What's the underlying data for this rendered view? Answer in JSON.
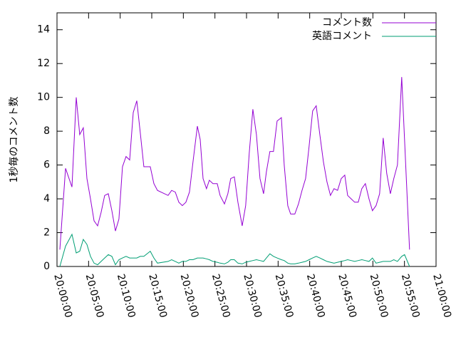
{
  "chart_data": {
    "type": "line",
    "ylabel": "1秒毎のコメント数",
    "x": [
      "20:00:27",
      "20:01:21",
      "20:02:22",
      "20:03:03",
      "20:03:36",
      "20:04:10",
      "20:04:44",
      "20:05:18",
      "20:05:52",
      "20:06:26",
      "20:06:59",
      "20:07:33",
      "20:08:07",
      "20:08:41",
      "20:09:15",
      "20:09:48",
      "20:10:22",
      "20:10:56",
      "20:11:30",
      "20:12:04",
      "20:12:38",
      "20:13:11",
      "20:13:45",
      "20:14:46",
      "20:15:20",
      "20:15:54",
      "20:17:35",
      "20:18:09",
      "20:18:43",
      "20:19:17",
      "20:19:50",
      "20:20:24",
      "20:20:58",
      "20:21:32",
      "20:22:13",
      "20:22:40",
      "20:23:07",
      "20:23:40",
      "20:24:07",
      "20:24:41",
      "20:25:22",
      "20:25:49",
      "20:26:30",
      "20:27:03",
      "20:27:30",
      "20:28:04",
      "20:28:38",
      "20:29:19",
      "20:29:52",
      "20:30:26",
      "20:31:00",
      "20:31:34",
      "20:32:08",
      "20:32:42",
      "20:33:09",
      "20:33:42",
      "20:34:16",
      "20:34:50",
      "20:35:31",
      "20:35:58",
      "20:36:32",
      "20:36:59",
      "20:37:39",
      "20:38:13",
      "20:38:47",
      "20:39:21",
      "20:39:54",
      "20:40:28",
      "20:41:02",
      "20:41:36",
      "20:42:10",
      "20:42:44",
      "20:43:17",
      "20:43:51",
      "20:44:25",
      "20:44:59",
      "20:45:33",
      "20:46:00",
      "20:46:34",
      "20:47:07",
      "20:47:41",
      "20:48:15",
      "20:48:49",
      "20:49:23",
      "20:49:56",
      "20:50:30",
      "20:51:04",
      "20:51:38",
      "20:52:12",
      "20:52:46",
      "20:53:19",
      "20:53:53",
      "20:54:34",
      "20:55:01",
      "20:55:48"
    ],
    "series": [
      {
        "name": "コメント数",
        "color": "#9400d3",
        "values": [
          1.0,
          5.8,
          4.7,
          10.0,
          7.8,
          8.2,
          5.2,
          4.0,
          2.7,
          2.4,
          3.2,
          4.2,
          4.3,
          3.3,
          2.1,
          2.8,
          5.9,
          6.5,
          6.3,
          9.1,
          9.8,
          7.9,
          5.9,
          5.9,
          4.9,
          4.5,
          4.2,
          4.5,
          4.4,
          3.8,
          3.6,
          3.8,
          4.4,
          6.2,
          8.3,
          7.5,
          5.2,
          4.6,
          5.1,
          4.9,
          4.9,
          4.2,
          3.7,
          4.3,
          5.2,
          5.3,
          3.8,
          2.4,
          3.6,
          6.7,
          9.3,
          7.8,
          5.2,
          4.3,
          5.6,
          6.8,
          6.8,
          8.6,
          8.8,
          6.0,
          3.6,
          3.1,
          3.1,
          3.7,
          4.5,
          5.2,
          7.1,
          9.2,
          9.5,
          7.8,
          6.2,
          5.0,
          4.2,
          4.6,
          4.5,
          5.2,
          5.4,
          4.2,
          4.0,
          3.8,
          3.8,
          4.6,
          4.9,
          4.0,
          3.3,
          3.6,
          4.3,
          7.6,
          5.5,
          4.3,
          5.2,
          6.0,
          11.2,
          7.5,
          1.0
        ]
      },
      {
        "name": "英語コメント",
        "color": "#009e73",
        "values": [
          0.0,
          1.2,
          1.9,
          0.8,
          0.9,
          1.6,
          1.3,
          0.6,
          0.2,
          0.1,
          0.3,
          0.5,
          0.7,
          0.6,
          0.1,
          0.4,
          0.5,
          0.6,
          0.5,
          0.5,
          0.5,
          0.6,
          0.6,
          0.9,
          0.5,
          0.2,
          0.3,
          0.4,
          0.3,
          0.2,
          0.3,
          0.3,
          0.4,
          0.4,
          0.5,
          0.5,
          0.5,
          0.45,
          0.4,
          0.3,
          0.25,
          0.2,
          0.15,
          0.25,
          0.4,
          0.4,
          0.2,
          0.15,
          0.25,
          0.3,
          0.35,
          0.4,
          0.35,
          0.3,
          0.5,
          0.75,
          0.6,
          0.5,
          0.4,
          0.35,
          0.2,
          0.15,
          0.15,
          0.2,
          0.25,
          0.3,
          0.4,
          0.5,
          0.6,
          0.5,
          0.4,
          0.3,
          0.25,
          0.2,
          0.25,
          0.3,
          0.35,
          0.4,
          0.35,
          0.3,
          0.35,
          0.4,
          0.35,
          0.3,
          0.5,
          0.2,
          0.25,
          0.3,
          0.3,
          0.3,
          0.4,
          0.3,
          0.6,
          0.7,
          0.0
        ]
      }
    ],
    "xlim": [
      "20:00:00",
      "21:00:00"
    ],
    "xticks": [
      "20:00:00",
      "20:05:00",
      "20:10:00",
      "20:15:00",
      "20:20:00",
      "20:25:00",
      "20:30:00",
      "20:35:00",
      "20:40:00",
      "20:45:00",
      "20:50:00",
      "20:55:00",
      "21:00:00"
    ],
    "ylim": [
      0,
      15
    ],
    "yticks": [
      0,
      2,
      4,
      6,
      8,
      10,
      12,
      14
    ],
    "legend": "top right"
  }
}
